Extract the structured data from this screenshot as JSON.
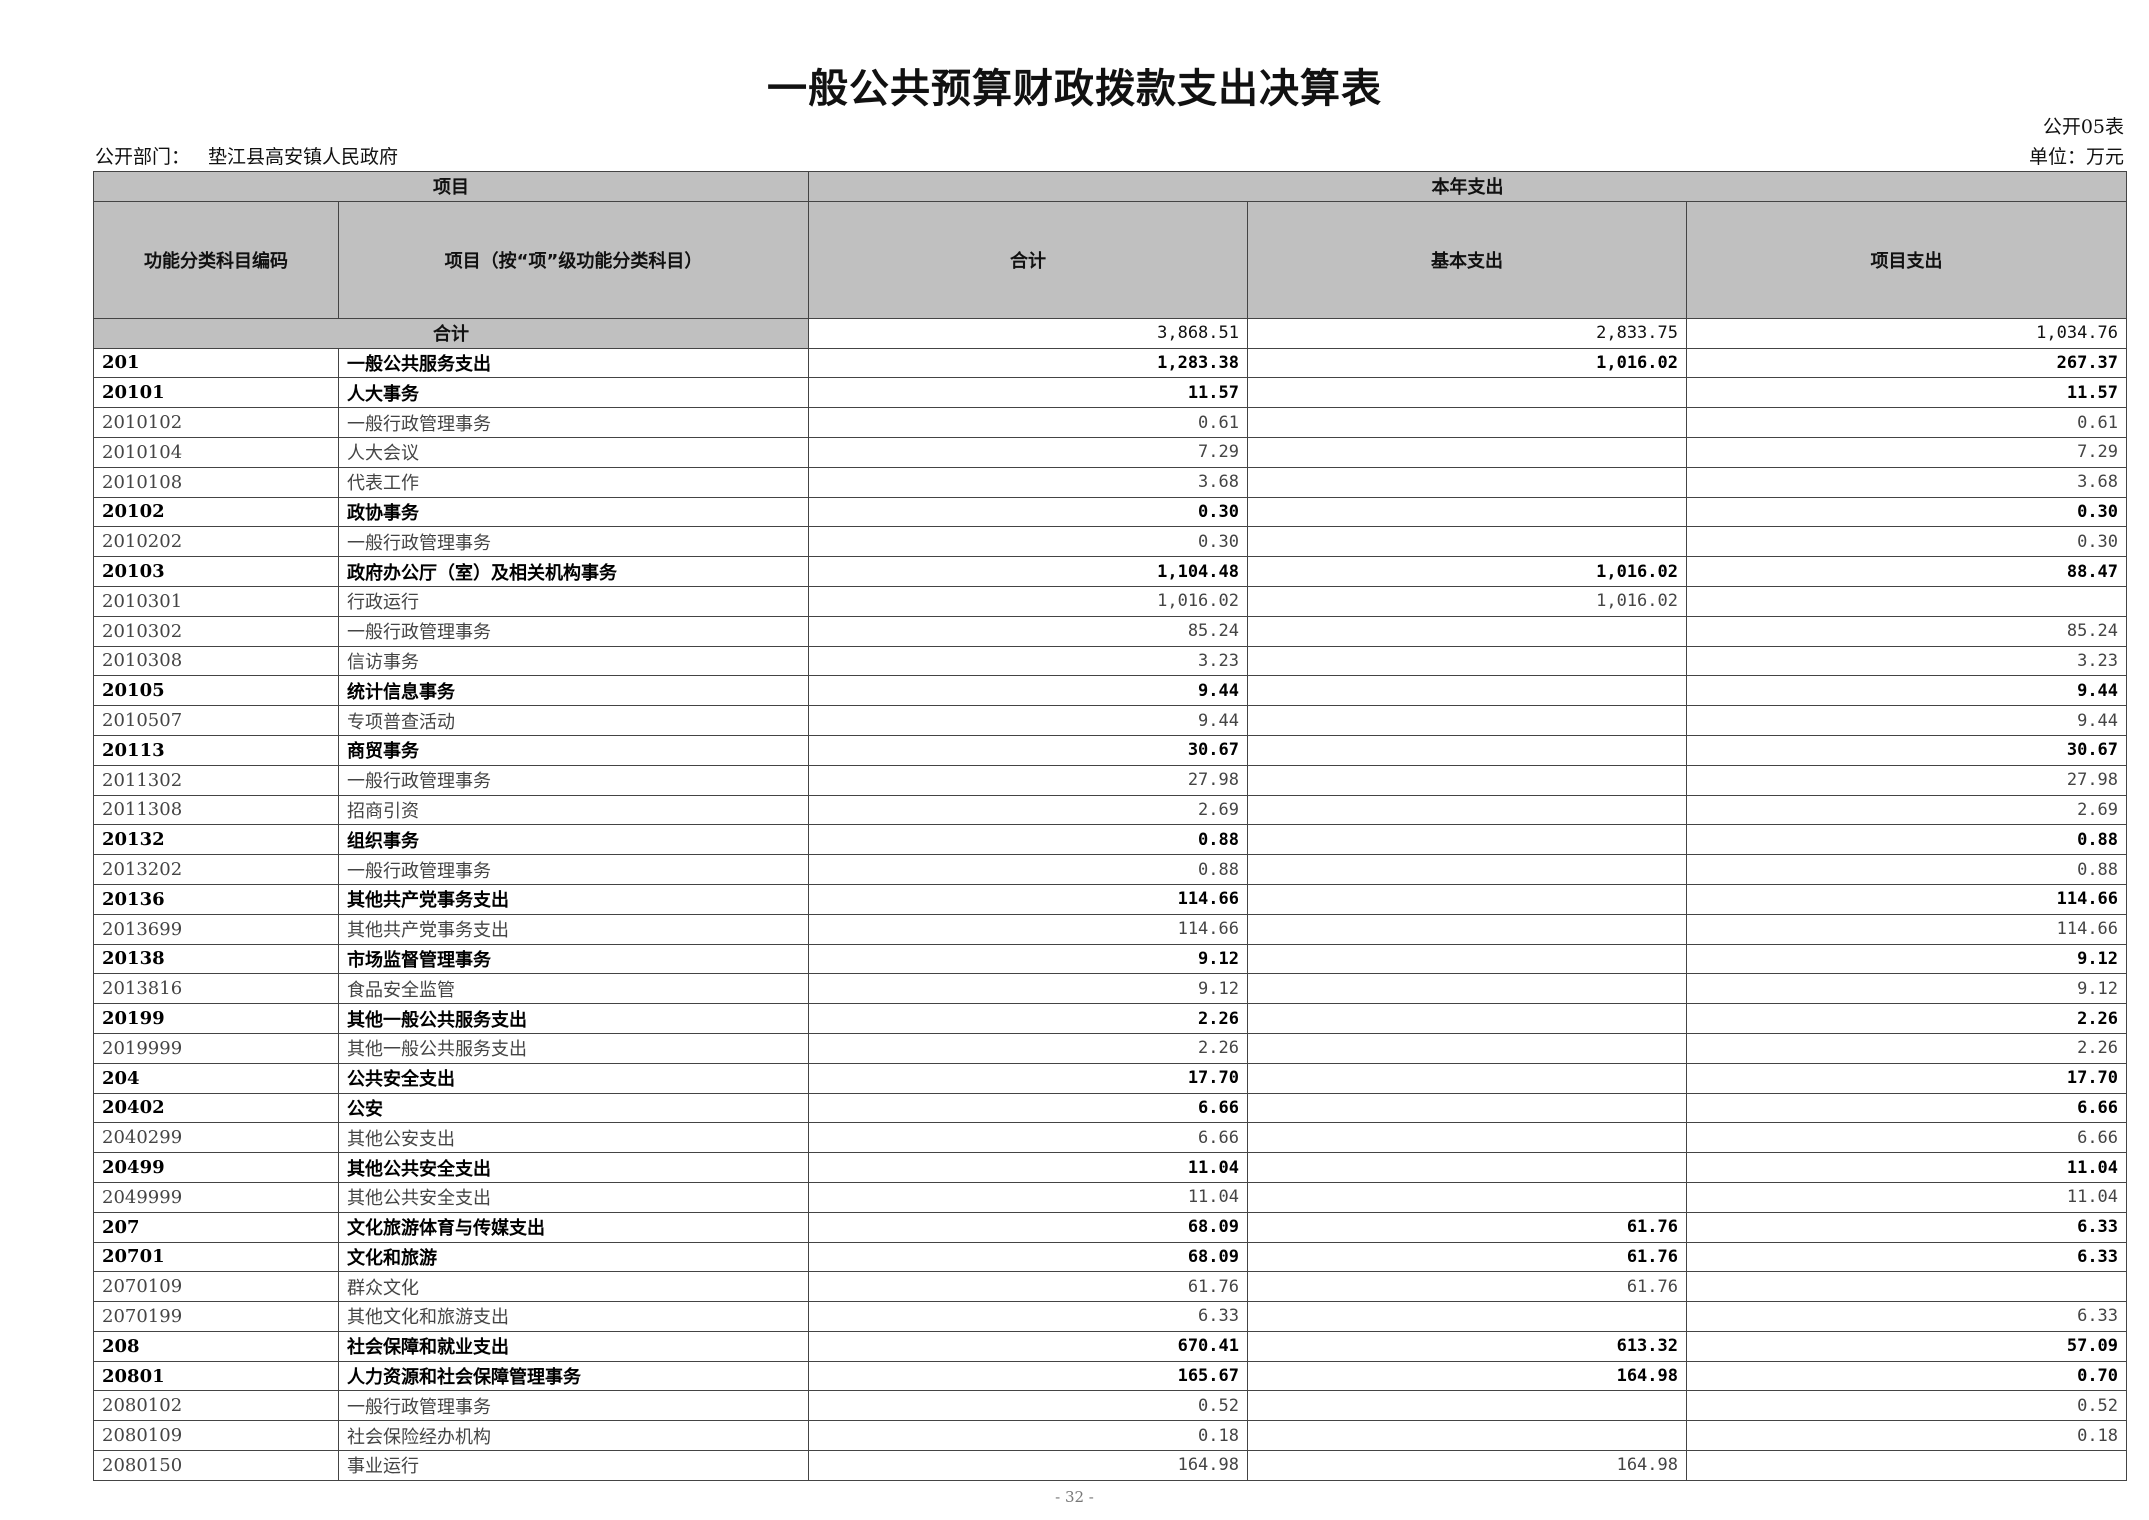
{
  "title": "一般公共预算财政拨款支出决算表",
  "table_no": "公开05表",
  "department_label": "公开部门：",
  "department": "垫江县高安镇人民政府",
  "unit": "单位：万元",
  "header": {
    "project": "项目",
    "current_year": "本年支出",
    "code": "功能分类科目编码",
    "item": "项目（按“项”级功能分类科目）",
    "total": "合计",
    "basic": "基本支出",
    "project_exp": "项目支出"
  },
  "total_row": {
    "label": "合计",
    "total": "3,868.51",
    "basic": "2,833.75",
    "project": "1,034.76"
  },
  "rows": [
    {
      "code": "201",
      "name": "一般公共服务支出",
      "total": "1,283.38",
      "basic": "1,016.02",
      "project": "267.37",
      "level": 1
    },
    {
      "code": "20101",
      "name": "人大事务",
      "total": "11.57",
      "basic": "",
      "project": "11.57",
      "level": 2
    },
    {
      "code": "2010102",
      "name": "一般行政管理事务",
      "total": "0.61",
      "basic": "",
      "project": "0.61",
      "level": 3
    },
    {
      "code": "2010104",
      "name": "人大会议",
      "total": "7.29",
      "basic": "",
      "project": "7.29",
      "level": 3
    },
    {
      "code": "2010108",
      "name": "代表工作",
      "total": "3.68",
      "basic": "",
      "project": "3.68",
      "level": 3
    },
    {
      "code": "20102",
      "name": "政协事务",
      "total": "0.30",
      "basic": "",
      "project": "0.30",
      "level": 2
    },
    {
      "code": "2010202",
      "name": "一般行政管理事务",
      "total": "0.30",
      "basic": "",
      "project": "0.30",
      "level": 3
    },
    {
      "code": "20103",
      "name": "政府办公厅（室）及相关机构事务",
      "total": "1,104.48",
      "basic": "1,016.02",
      "project": "88.47",
      "level": 2
    },
    {
      "code": "2010301",
      "name": "行政运行",
      "total": "1,016.02",
      "basic": "1,016.02",
      "project": "",
      "level": 3
    },
    {
      "code": "2010302",
      "name": "一般行政管理事务",
      "total": "85.24",
      "basic": "",
      "project": "85.24",
      "level": 3
    },
    {
      "code": "2010308",
      "name": "信访事务",
      "total": "3.23",
      "basic": "",
      "project": "3.23",
      "level": 3
    },
    {
      "code": "20105",
      "name": "统计信息事务",
      "total": "9.44",
      "basic": "",
      "project": "9.44",
      "level": 2
    },
    {
      "code": "2010507",
      "name": "专项普查活动",
      "total": "9.44",
      "basic": "",
      "project": "9.44",
      "level": 3
    },
    {
      "code": "20113",
      "name": "商贸事务",
      "total": "30.67",
      "basic": "",
      "project": "30.67",
      "level": 2
    },
    {
      "code": "2011302",
      "name": "一般行政管理事务",
      "total": "27.98",
      "basic": "",
      "project": "27.98",
      "level": 3
    },
    {
      "code": "2011308",
      "name": "招商引资",
      "total": "2.69",
      "basic": "",
      "project": "2.69",
      "level": 3
    },
    {
      "code": "20132",
      "name": "组织事务",
      "total": "0.88",
      "basic": "",
      "project": "0.88",
      "level": 2
    },
    {
      "code": "2013202",
      "name": "一般行政管理事务",
      "total": "0.88",
      "basic": "",
      "project": "0.88",
      "level": 3
    },
    {
      "code": "20136",
      "name": "其他共产党事务支出",
      "total": "114.66",
      "basic": "",
      "project": "114.66",
      "level": 2
    },
    {
      "code": "2013699",
      "name": "其他共产党事务支出",
      "total": "114.66",
      "basic": "",
      "project": "114.66",
      "level": 3
    },
    {
      "code": "20138",
      "name": "市场监督管理事务",
      "total": "9.12",
      "basic": "",
      "project": "9.12",
      "level": 2
    },
    {
      "code": "2013816",
      "name": "食品安全监管",
      "total": "9.12",
      "basic": "",
      "project": "9.12",
      "level": 3
    },
    {
      "code": "20199",
      "name": "其他一般公共服务支出",
      "total": "2.26",
      "basic": "",
      "project": "2.26",
      "level": 2
    },
    {
      "code": "2019999",
      "name": "其他一般公共服务支出",
      "total": "2.26",
      "basic": "",
      "project": "2.26",
      "level": 3
    },
    {
      "code": "204",
      "name": "公共安全支出",
      "total": "17.70",
      "basic": "",
      "project": "17.70",
      "level": 1
    },
    {
      "code": "20402",
      "name": "公安",
      "total": "6.66",
      "basic": "",
      "project": "6.66",
      "level": 2
    },
    {
      "code": "2040299",
      "name": "其他公安支出",
      "total": "6.66",
      "basic": "",
      "project": "6.66",
      "level": 3
    },
    {
      "code": "20499",
      "name": "其他公共安全支出",
      "total": "11.04",
      "basic": "",
      "project": "11.04",
      "level": 2
    },
    {
      "code": "2049999",
      "name": "其他公共安全支出",
      "total": "11.04",
      "basic": "",
      "project": "11.04",
      "level": 3
    },
    {
      "code": "207",
      "name": "文化旅游体育与传媒支出",
      "total": "68.09",
      "basic": "61.76",
      "project": "6.33",
      "level": 1
    },
    {
      "code": "20701",
      "name": "文化和旅游",
      "total": "68.09",
      "basic": "61.76",
      "project": "6.33",
      "level": 2
    },
    {
      "code": "2070109",
      "name": "群众文化",
      "total": "61.76",
      "basic": "61.76",
      "project": "",
      "level": 3
    },
    {
      "code": "2070199",
      "name": "其他文化和旅游支出",
      "total": "6.33",
      "basic": "",
      "project": "6.33",
      "level": 3
    },
    {
      "code": "208",
      "name": "社会保障和就业支出",
      "total": "670.41",
      "basic": "613.32",
      "project": "57.09",
      "level": 1
    },
    {
      "code": "20801",
      "name": "人力资源和社会保障管理事务",
      "total": "165.67",
      "basic": "164.98",
      "project": "0.70",
      "level": 2
    },
    {
      "code": "2080102",
      "name": "一般行政管理事务",
      "total": "0.52",
      "basic": "",
      "project": "0.52",
      "level": 3
    },
    {
      "code": "2080109",
      "name": "社会保险经办机构",
      "total": "0.18",
      "basic": "",
      "project": "0.18",
      "level": 3
    },
    {
      "code": "2080150",
      "name": "事业运行",
      "total": "164.98",
      "basic": "164.98",
      "project": "",
      "level": 3
    }
  ],
  "page_number": "- 32 -"
}
